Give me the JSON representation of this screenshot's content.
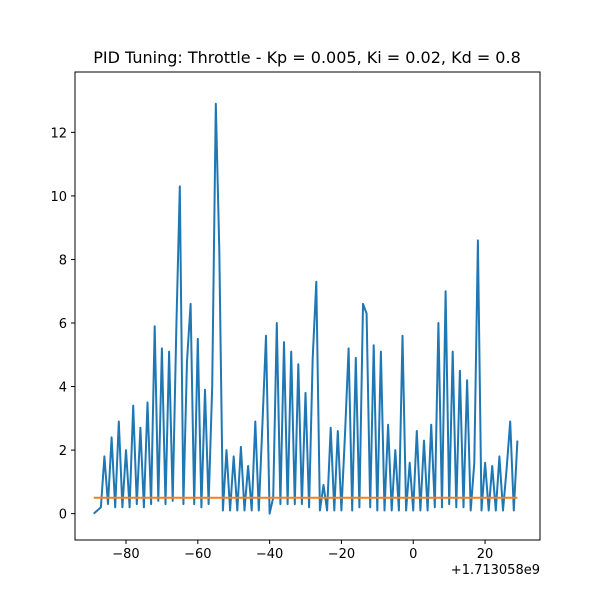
{
  "chart_data": {
    "type": "line",
    "title": "PID Tuning: Throttle - Kp = 0.005, Ki = 0.02, Kd = 0.8",
    "x_offset_label": "+1.713058e9",
    "xlim": [
      -94.2,
      35.3
    ],
    "ylim": [
      -0.83,
      13.9
    ],
    "xticks": [
      {
        "value": -80,
        "label": "−80"
      },
      {
        "value": -60,
        "label": "−60"
      },
      {
        "value": -40,
        "label": "−40"
      },
      {
        "value": -20,
        "label": "−20"
      },
      0,
      20
    ],
    "yticks": [
      0,
      2,
      4,
      6,
      8,
      10,
      12
    ],
    "series": [
      {
        "color": "#1f77b4",
        "x": [
          -89,
          -88,
          -87,
          -86,
          -85,
          -84,
          -83,
          -82,
          -81,
          -80,
          -79,
          -78,
          -77,
          -76,
          -75,
          -74,
          -73,
          -72,
          -71,
          -70,
          -69,
          -68,
          -67,
          -66,
          -65,
          -64,
          -63,
          -62,
          -61,
          -60,
          -59,
          -58,
          -57,
          -56,
          -55,
          -54,
          -53,
          -52,
          -51,
          -50,
          -49,
          -48,
          -47,
          -46,
          -45,
          -44,
          -43,
          -42,
          -41,
          -40,
          -39,
          -38,
          -37,
          -36,
          -35,
          -34,
          -33,
          -32,
          -31,
          -30,
          -29,
          -28,
          -27,
          -26,
          -25,
          -24,
          -23,
          -22,
          -21,
          -20,
          -19,
          -18,
          -17,
          -16,
          -15,
          -14,
          -13,
          -12,
          -11,
          -10,
          -9,
          -8,
          -7,
          -6,
          -5,
          -4,
          -3,
          -2,
          -1,
          0,
          1,
          2,
          3,
          4,
          5,
          6,
          7,
          8,
          9,
          10,
          11,
          12,
          13,
          14,
          15,
          16,
          17,
          18,
          19,
          20,
          21,
          22,
          23,
          24,
          25,
          26,
          27,
          28,
          29
        ],
        "values": [
          0,
          0.1,
          0.2,
          1.8,
          0.3,
          2.4,
          0.2,
          2.9,
          0.2,
          2.0,
          0.2,
          3.4,
          0.3,
          2.7,
          0.2,
          3.5,
          0.3,
          5.9,
          0.4,
          5.2,
          0.3,
          5.1,
          0.4,
          5.8,
          10.3,
          0.3,
          4.8,
          6.6,
          0.3,
          5.5,
          0.2,
          3.9,
          0.3,
          4.0,
          12.9,
          8.3,
          0.1,
          2.0,
          0.1,
          1.8,
          0.1,
          2.1,
          0.1,
          1.5,
          0.1,
          2.9,
          0.1,
          2.8,
          5.6,
          0,
          0.5,
          6.0,
          0.3,
          5.4,
          0.3,
          5.1,
          0.3,
          4.7,
          0.3,
          3.8,
          0.2,
          4.9,
          7.3,
          0.1,
          0.9,
          0.1,
          2.7,
          0.1,
          2.6,
          0.1,
          2.5,
          5.2,
          0.1,
          4.9,
          0.2,
          6.6,
          6.3,
          0.2,
          5.3,
          0.1,
          5.1,
          0.1,
          2.8,
          0.1,
          2.0,
          0.1,
          5.6,
          0.1,
          1.6,
          0.1,
          2.6,
          0.1,
          2.3,
          0.1,
          2.8,
          0.2,
          6.0,
          0.2,
          7.0,
          0.3,
          5.1,
          0.2,
          4.5,
          0.2,
          4.2,
          0.1,
          1.6,
          8.6,
          0.1,
          1.6,
          0.1,
          1.5,
          0.1,
          1.8,
          0.1,
          1.4,
          2.9,
          0.1,
          2.3
        ]
      },
      {
        "color": "#ff7f0e",
        "x": [
          -89,
          29
        ],
        "values": [
          0.5,
          0.5
        ]
      }
    ]
  }
}
